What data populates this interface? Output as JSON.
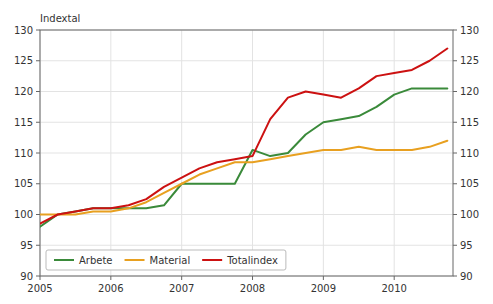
{
  "chart_data": {
    "type": "line",
    "ylabel": "Indextal",
    "x": [
      2005.0,
      2005.25,
      2005.5,
      2005.75,
      2006.0,
      2006.25,
      2006.5,
      2006.75,
      2007.0,
      2007.25,
      2007.5,
      2007.75,
      2008.0,
      2008.25,
      2008.5,
      2008.75,
      2009.0,
      2009.25,
      2009.5,
      2009.75,
      2010.0,
      2010.25,
      2010.5,
      2010.75
    ],
    "series": [
      {
        "name": "Arbete",
        "color": "#3a8a3a",
        "values": [
          98.0,
          100.0,
          100.5,
          101.0,
          101.0,
          101.0,
          101.0,
          101.5,
          105.0,
          105.0,
          105.0,
          105.0,
          110.5,
          109.5,
          110.0,
          113.0,
          115.0,
          115.5,
          116.0,
          117.5,
          119.5,
          120.5,
          120.5,
          120.5
        ]
      },
      {
        "name": "Material",
        "color": "#e8a020",
        "values": [
          100.0,
          100.0,
          100.0,
          100.5,
          100.5,
          101.0,
          102.0,
          103.5,
          105.0,
          106.5,
          107.5,
          108.5,
          108.5,
          109.0,
          109.5,
          110.0,
          110.5,
          110.5,
          111.0,
          110.5,
          110.5,
          110.5,
          111.0,
          112.0
        ]
      },
      {
        "name": "Totalindex",
        "color": "#cc1111",
        "values": [
          98.5,
          100.0,
          100.5,
          101.0,
          101.0,
          101.5,
          102.5,
          104.5,
          106.0,
          107.5,
          108.5,
          109.0,
          109.5,
          115.5,
          119.0,
          120.0,
          119.5,
          119.0,
          120.5,
          122.5,
          123.0,
          123.5,
          125.0,
          127.0
        ]
      }
    ],
    "xlim": [
      2005.0,
      2010.83
    ],
    "xticks": [
      2005,
      2006,
      2007,
      2008,
      2009,
      2010
    ],
    "ylim": [
      90,
      130
    ],
    "yticks": [
      90,
      95,
      100,
      105,
      110,
      115,
      120,
      125,
      130
    ],
    "y2lim": [
      90,
      130
    ],
    "y2ticks": [
      90,
      95,
      100,
      105,
      110,
      115,
      120,
      125,
      130
    ],
    "grid": true,
    "legend": "lower left"
  }
}
